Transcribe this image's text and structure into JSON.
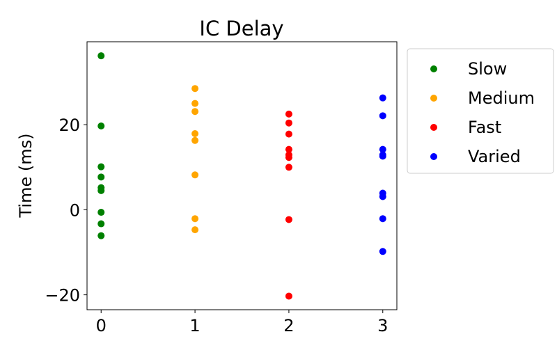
{
  "chart_data": {
    "type": "scatter",
    "title": "IC Delay",
    "xlabel": "",
    "ylabel": "Time (ms)",
    "xlim": [
      -0.15,
      3.15
    ],
    "ylim": [
      -23.5,
      39.5
    ],
    "xticks": [
      0,
      1,
      2,
      3
    ],
    "yticks": [
      -20,
      0,
      20
    ],
    "ytick_labels": [
      "−20",
      "0",
      "20"
    ],
    "grid": false,
    "legend_position": "outside-right-top",
    "series": [
      {
        "name": "Slow",
        "color": "#008000",
        "x": 0,
        "y": [
          36.2,
          19.7,
          10.1,
          7.7,
          5.2,
          4.5,
          -0.6,
          -3.3,
          -6.1
        ]
      },
      {
        "name": "Medium",
        "color": "#ffa500",
        "x": 1,
        "y": [
          28.5,
          25.0,
          23.1,
          17.9,
          16.3,
          8.2,
          -2.1,
          -4.7
        ]
      },
      {
        "name": "Fast",
        "color": "#ff0000",
        "x": 2,
        "y": [
          22.5,
          20.4,
          17.8,
          14.2,
          12.9,
          12.3,
          10.0,
          -2.3,
          -20.3
        ]
      },
      {
        "name": "Varied",
        "color": "#0000ff",
        "x": 3,
        "y": [
          26.3,
          22.1,
          14.2,
          12.9,
          12.6,
          3.9,
          3.1,
          -2.1,
          -9.8
        ]
      }
    ]
  }
}
